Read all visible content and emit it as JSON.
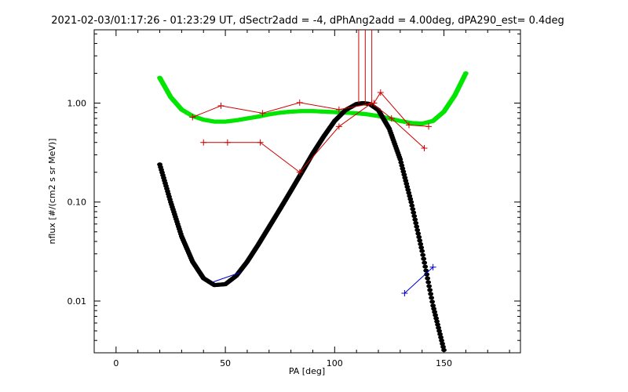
{
  "chart_data": {
    "type": "line",
    "title": "2021-02-03/01:17:26 - 01:23:29 UT, dSectr2add = -4, dPhAng2add = 4.00deg, dPA290_est=   0.4deg",
    "xlabel": "PA [deg]",
    "ylabel": "nflux [#/(cm2 s sr MeV)]",
    "xlim": [
      -10,
      185
    ],
    "ylim": [
      0.003,
      5.5
    ],
    "yscale": "log",
    "xticks": [
      {
        "value": 0,
        "label": "0"
      },
      {
        "value": 50,
        "label": "50"
      },
      {
        "value": 100,
        "label": "100"
      },
      {
        "value": 150,
        "label": "150"
      }
    ],
    "yticks": [
      {
        "value": 0.01,
        "label": "0.01"
      },
      {
        "value": 0.1,
        "label": "0.10"
      },
      {
        "value": 1.0,
        "label": "1.00"
      }
    ],
    "grid": false,
    "series": [
      {
        "style": "thick-dotted",
        "color": "#00e600",
        "x": [
          20,
          25,
          30,
          35,
          40,
          45,
          50,
          55,
          60,
          65,
          70,
          75,
          80,
          85,
          90,
          95,
          100,
          105,
          110,
          115,
          120,
          125,
          130,
          135,
          140,
          145,
          150,
          155,
          160
        ],
        "y": [
          1.8,
          1.15,
          0.86,
          0.74,
          0.68,
          0.65,
          0.65,
          0.67,
          0.7,
          0.73,
          0.77,
          0.8,
          0.82,
          0.83,
          0.83,
          0.82,
          0.81,
          0.8,
          0.79,
          0.77,
          0.74,
          0.7,
          0.66,
          0.63,
          0.62,
          0.66,
          0.82,
          1.2,
          2.0
        ]
      },
      {
        "style": "thick-dotted",
        "color": "#000000",
        "x": [
          20,
          25,
          30,
          35,
          40,
          45,
          50,
          55,
          60,
          65,
          70,
          75,
          80,
          85,
          90,
          95,
          100,
          105,
          110,
          113,
          116,
          120,
          125,
          130,
          135,
          140,
          145,
          150
        ],
        "y": [
          0.24,
          0.1,
          0.045,
          0.025,
          0.017,
          0.0145,
          0.0148,
          0.018,
          0.025,
          0.037,
          0.056,
          0.085,
          0.13,
          0.2,
          0.31,
          0.46,
          0.66,
          0.85,
          0.98,
          1.0,
          0.98,
          0.85,
          0.55,
          0.27,
          0.1,
          0.032,
          0.009,
          0.0032
        ]
      },
      {
        "style": "line-plus",
        "color": "#cc0000",
        "x": [
          35,
          48,
          67,
          84,
          102,
          118,
          121,
          134,
          143
        ],
        "y": [
          0.72,
          0.94,
          0.79,
          1.01,
          0.86,
          1.0,
          1.28,
          0.6,
          0.58
        ]
      },
      {
        "style": "line-plus",
        "color": "#cc0000",
        "x": [
          40,
          51,
          66,
          84,
          102,
          117,
          126,
          141
        ],
        "y": [
          0.4,
          0.4,
          0.4,
          0.2,
          0.58,
          1.0,
          0.7,
          0.35
        ]
      },
      {
        "style": "line",
        "color": "#0000cc",
        "x": [
          44,
          57
        ],
        "y": [
          0.0155,
          0.0195
        ]
      },
      {
        "style": "line-plus",
        "color": "#0000cc",
        "x": [
          132,
          145
        ],
        "y": [
          0.012,
          0.022
        ]
      }
    ],
    "annotations": [
      {
        "type": "vertical-lines",
        "color": "#cc0000",
        "x": [
          111,
          114,
          117
        ],
        "y_from": 1.0
      }
    ]
  }
}
